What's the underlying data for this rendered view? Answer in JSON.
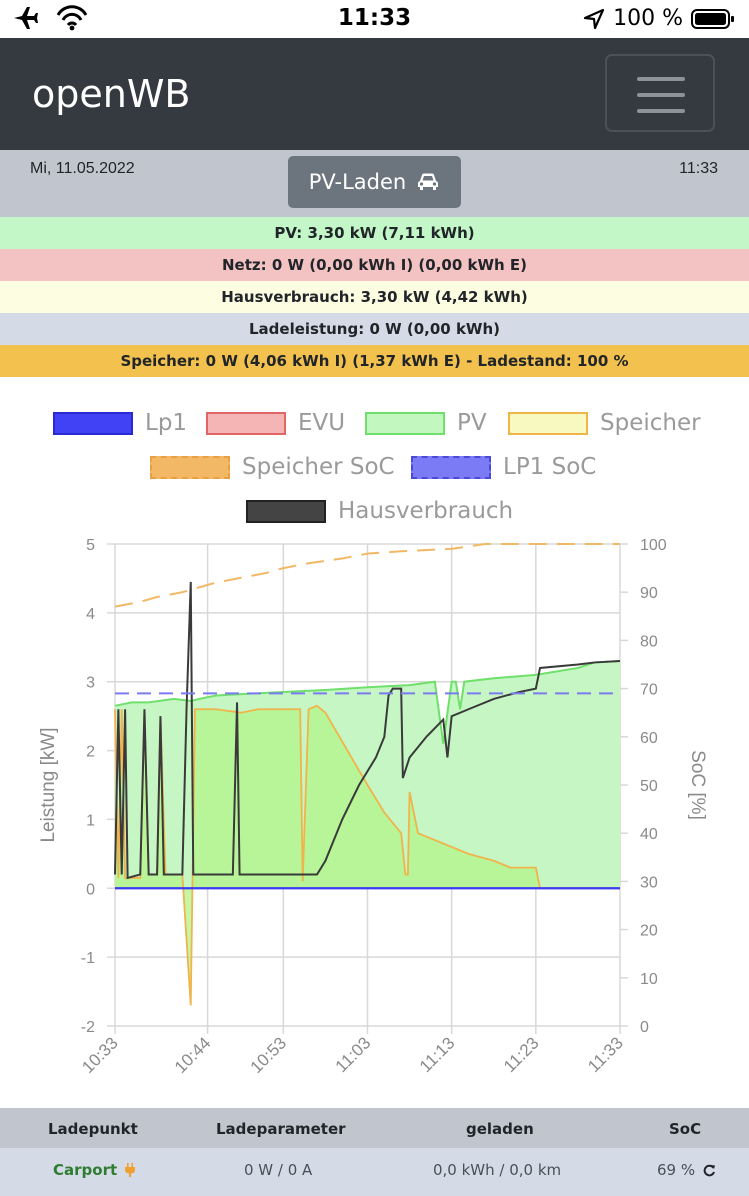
{
  "status_bar": {
    "time": "11:33",
    "battery": "100 %",
    "icons": [
      "airplane-icon",
      "wifi-icon",
      "location-arrow-icon",
      "battery-icon"
    ]
  },
  "navbar": {
    "brand": "openWB",
    "menu_icon": "hamburger-menu-icon"
  },
  "info": {
    "date": "Mi, 11.05.2022",
    "time": "11:33",
    "mode_button": "PV-Laden",
    "mode_icon": "car-icon"
  },
  "summary": {
    "pv": "PV: 3,30 kW (7,11 kWh)",
    "netz": "Netz: 0 W (0,00 kWh I) (0,00 kWh E)",
    "hausverbrauch": "Hausverbrauch: 3,30 kW (4,42 kWh)",
    "ladeleistung": "Ladeleistung: 0 W (0,00 kWh)",
    "speicher": "Speicher: 0 W (4,06 kWh I) (1,37 kWh E) - Ladestand: 100 %"
  },
  "colors": {
    "pv_row": "#c3f7c8",
    "netz_row": "#f3c3c3",
    "haus_row": "#fdfde2",
    "lade_row": "#d4dbe6",
    "speicher_row": "#f2c14e",
    "lp1": "#3b3bf0",
    "evu": "#f5b5b5",
    "pv": "#c3f7c0",
    "speicher": "#f0f5b8",
    "speicher_soc": "#f2b866",
    "lp1_soc": "#7b7bf0",
    "hausverbrauch": "#3a3a3a"
  },
  "chart_data": {
    "type": "line",
    "legend": [
      "Lp1",
      "EVU",
      "PV",
      "Speicher",
      "Speicher SoC",
      "LP1 SoC",
      "Hausverbrauch"
    ],
    "ylabel": "Leistung [kW]",
    "y2label": "SoC [%]",
    "ylim": [
      -2,
      5
    ],
    "y2lim": [
      0,
      100
    ],
    "y_ticks": [
      "5",
      "4",
      "3",
      "2",
      "1",
      "0",
      "-1",
      "-2"
    ],
    "y2_ticks": [
      "100",
      "90",
      "80",
      "70",
      "60",
      "50",
      "40",
      "30",
      "20",
      "10",
      "0"
    ],
    "x_ticks": [
      "10:33",
      "10:44",
      "10:53",
      "11:03",
      "11:13",
      "11:23",
      "11:33"
    ],
    "xlim_minutes_from_1033": [
      0,
      60
    ],
    "series": {
      "pv": {
        "name": "PV",
        "points": [
          [
            0,
            2.65
          ],
          [
            2,
            2.7
          ],
          [
            4,
            2.7
          ],
          [
            7,
            2.75
          ],
          [
            9,
            2.72
          ],
          [
            10,
            2.75
          ],
          [
            12,
            2.8
          ],
          [
            15,
            2.82
          ],
          [
            20,
            2.85
          ],
          [
            25,
            2.88
          ],
          [
            30,
            2.92
          ],
          [
            35,
            2.95
          ],
          [
            38,
            3.0
          ],
          [
            39,
            2.1
          ],
          [
            40,
            3.0
          ],
          [
            40.5,
            3.0
          ],
          [
            41,
            2.6
          ],
          [
            41.5,
            3.0
          ],
          [
            45,
            3.05
          ],
          [
            50,
            3.1
          ],
          [
            55,
            3.2
          ],
          [
            57,
            3.28
          ],
          [
            60,
            3.3
          ]
        ]
      },
      "speicher": {
        "name": "Speicher",
        "points": [
          [
            0,
            2.6
          ],
          [
            0.4,
            0.15
          ],
          [
            0.8,
            2.6
          ],
          [
            1.2,
            0.15
          ],
          [
            3,
            0.15
          ],
          [
            3.5,
            2.55
          ],
          [
            4,
            0.2
          ],
          [
            5,
            0.2
          ],
          [
            5.4,
            2.5
          ],
          [
            6,
            0.2
          ],
          [
            8,
            0.2
          ],
          [
            9,
            -1.7
          ],
          [
            9.5,
            2.6
          ],
          [
            12,
            2.6
          ],
          [
            15,
            2.55
          ],
          [
            17,
            2.6
          ],
          [
            22,
            2.6
          ],
          [
            22.3,
            0.1
          ],
          [
            23,
            2.6
          ],
          [
            24,
            2.65
          ],
          [
            25,
            2.55
          ],
          [
            30,
            1.5
          ],
          [
            32,
            1.1
          ],
          [
            34,
            0.8
          ],
          [
            34.5,
            0.2
          ],
          [
            34.8,
            0.2
          ],
          [
            35,
            1.4
          ],
          [
            36,
            0.8
          ],
          [
            38,
            0.7
          ],
          [
            42,
            0.5
          ],
          [
            45,
            0.4
          ],
          [
            47,
            0.3
          ],
          [
            48,
            0.3
          ],
          [
            50,
            0.3
          ],
          [
            50.5,
            0.0
          ],
          [
            60,
            0.0
          ]
        ]
      },
      "hausverbrauch": {
        "name": "Hausverbrauch",
        "points": [
          [
            0,
            0.2
          ],
          [
            0.4,
            2.6
          ],
          [
            0.8,
            0.2
          ],
          [
            1.2,
            2.6
          ],
          [
            1.5,
            0.15
          ],
          [
            3,
            0.2
          ],
          [
            3.5,
            2.6
          ],
          [
            4,
            0.2
          ],
          [
            5,
            0.2
          ],
          [
            5.4,
            2.5
          ],
          [
            5.8,
            0.2
          ],
          [
            8,
            0.2
          ],
          [
            8.5,
            2.6
          ],
          [
            9,
            4.45
          ],
          [
            9.3,
            0.2
          ],
          [
            12,
            0.2
          ],
          [
            14,
            0.2
          ],
          [
            14.5,
            2.7
          ],
          [
            14.8,
            0.2
          ],
          [
            23,
            0.2
          ],
          [
            24,
            0.2
          ],
          [
            25,
            0.4
          ],
          [
            27,
            1.0
          ],
          [
            29,
            1.5
          ],
          [
            31,
            1.9
          ],
          [
            32,
            2.2
          ],
          [
            32.5,
            2.8
          ],
          [
            33,
            2.9
          ],
          [
            34,
            2.9
          ],
          [
            34.2,
            1.6
          ],
          [
            35,
            1.9
          ],
          [
            37,
            2.2
          ],
          [
            39,
            2.45
          ],
          [
            39.5,
            1.9
          ],
          [
            40,
            2.5
          ],
          [
            42,
            2.6
          ],
          [
            45,
            2.75
          ],
          [
            48,
            2.85
          ],
          [
            50,
            2.9
          ],
          [
            50.5,
            3.2
          ],
          [
            55,
            3.25
          ],
          [
            57,
            3.28
          ],
          [
            60,
            3.3
          ]
        ]
      },
      "speicher_soc": {
        "name": "Speicher SoC",
        "points": [
          [
            0,
            87
          ],
          [
            3,
            88
          ],
          [
            5,
            89
          ],
          [
            8,
            90
          ],
          [
            10,
            91
          ],
          [
            12,
            92
          ],
          [
            15,
            93
          ],
          [
            18,
            94
          ],
          [
            20,
            95
          ],
          [
            23,
            96
          ],
          [
            27,
            97
          ],
          [
            30,
            98
          ],
          [
            34,
            98.5
          ],
          [
            40,
            99
          ],
          [
            44,
            100
          ],
          [
            60,
            100
          ]
        ]
      },
      "lp1_soc": {
        "name": "LP1 SoC",
        "points": [
          [
            0,
            69
          ],
          [
            60,
            69
          ]
        ]
      },
      "lp1": {
        "name": "Lp1",
        "points": [
          [
            0,
            0
          ],
          [
            60,
            0
          ]
        ]
      }
    }
  },
  "table": {
    "headers": [
      "Ladepunkt",
      "Ladeparameter",
      "geladen",
      "SoC"
    ],
    "rows": [
      {
        "ladepunkt": "Carport",
        "ladeparameter": "0 W / 0 A",
        "geladen": "0,0 kWh / 0,0 km",
        "soc": "69 %",
        "plug_icon": "plug-icon",
        "refresh_icon": "refresh-icon"
      }
    ]
  }
}
